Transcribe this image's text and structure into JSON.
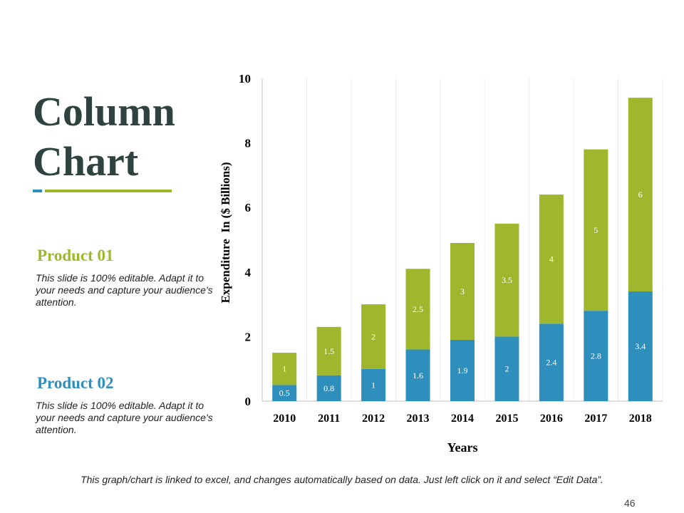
{
  "slide": {
    "title_line1": "Column",
    "title_line2": "Chart",
    "footer_note": "This graph/chart is linked to excel, and changes automatically based on data. Just left click on it and select “Edit Data”.",
    "page_number": "46"
  },
  "products": [
    {
      "name": "Product 01",
      "description": "This slide is 100% editable. Adapt it to your needs and capture your audience's attention."
    },
    {
      "name": "Product 02",
      "description": "This slide is 100% editable. Adapt it to your needs and capture your audience's attention."
    }
  ],
  "colors": {
    "product01": "#9fb72c",
    "product02": "#2e8fbd",
    "title": "#2e423f"
  },
  "chart_data": {
    "type": "bar",
    "stacked": true,
    "title": "",
    "categories": [
      "2010",
      "2011",
      "2012",
      "2013",
      "2014",
      "2015",
      "2016",
      "2017",
      "2018"
    ],
    "series": [
      {
        "name": "Product 02",
        "color": "#2e8fbd",
        "values": [
          0.5,
          0.8,
          1,
          1.6,
          1.9,
          2,
          2.4,
          2.8,
          3.4
        ]
      },
      {
        "name": "Product 01",
        "color": "#9fb72c",
        "values": [
          1,
          1.5,
          2,
          2.5,
          3,
          3.5,
          4,
          5,
          6
        ]
      }
    ],
    "xlabel": "Years",
    "ylabel": "Expenditure  In ($ Billions)",
    "ylim": [
      0,
      10
    ],
    "yticks": [
      0,
      2,
      4,
      6,
      8,
      10
    ],
    "grid": "vertical"
  }
}
